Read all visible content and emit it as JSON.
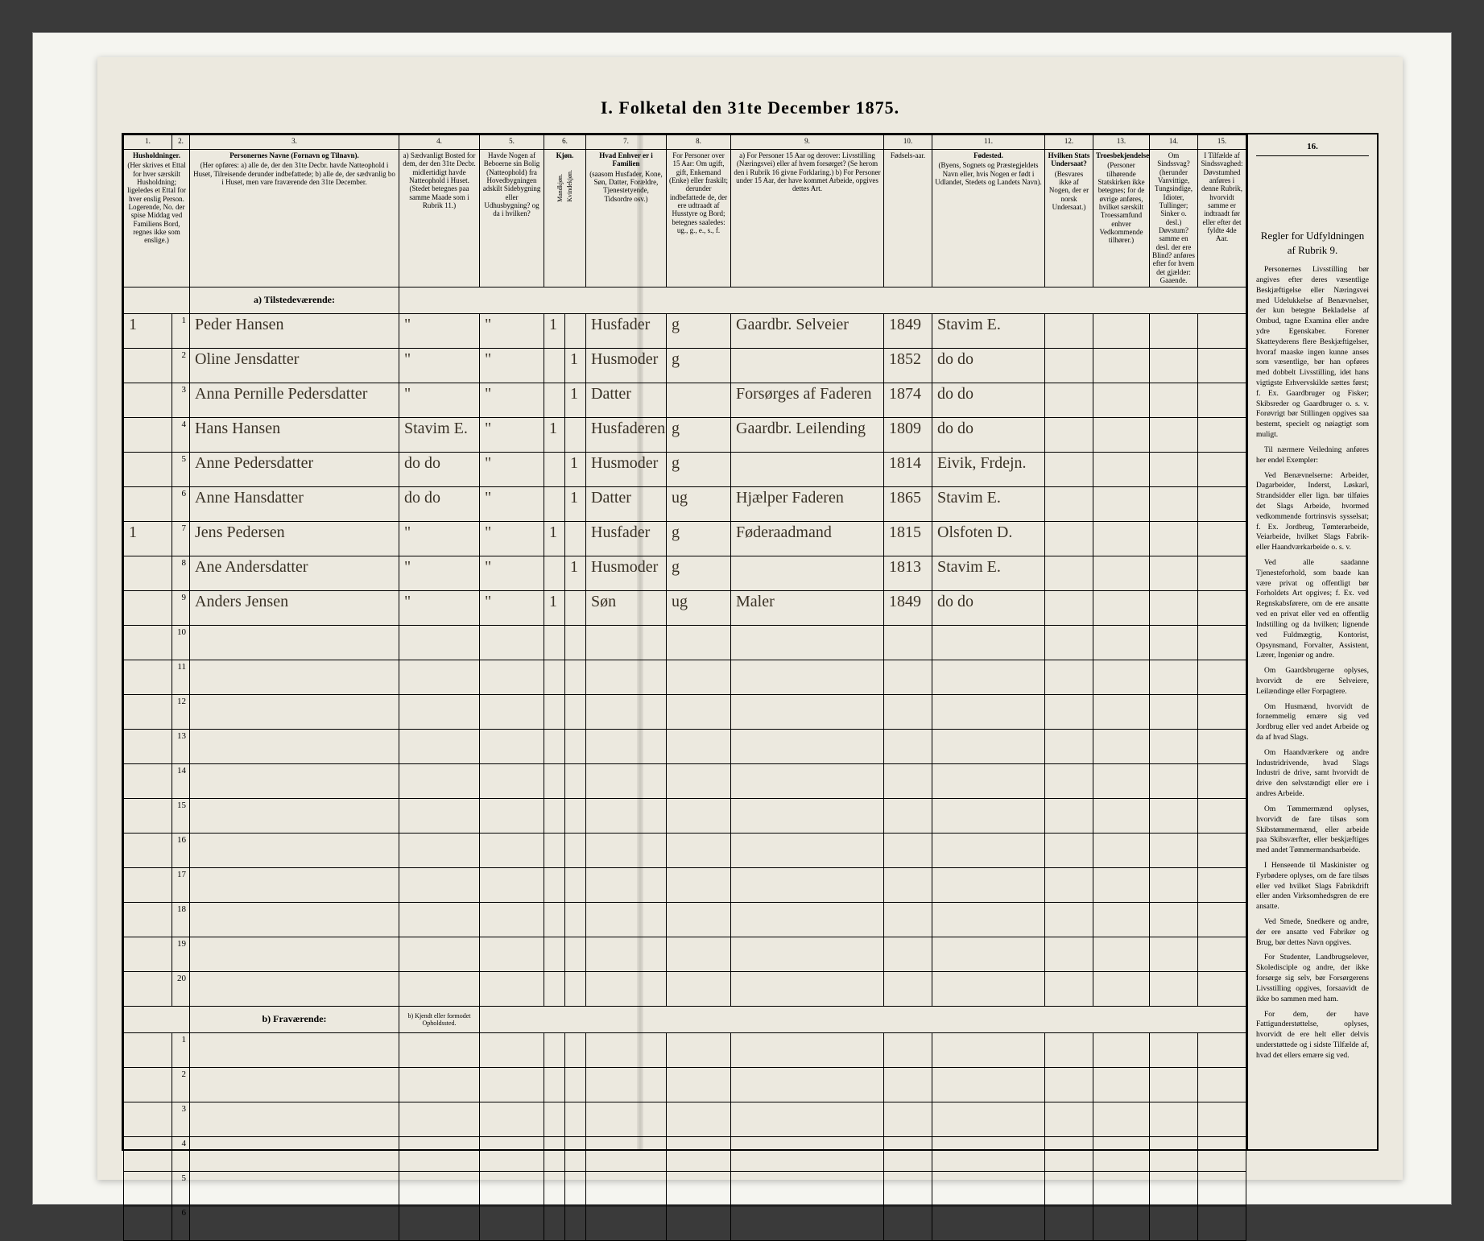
{
  "title": "I.  Folketal den 31te December 1875.",
  "columns": {
    "nums": [
      "1.",
      "2.",
      "3.",
      "4.",
      "5.",
      "6.",
      "7.",
      "8.",
      "9.",
      "10.",
      "11.",
      "12.",
      "13.",
      "14.",
      "15."
    ],
    "h1": "Husholdninger.",
    "h1b": "(Her skrives et Ettal for hver særskilt Husholdning; ligeledes et Ettal for hver enslig Person. Logerende, No. der spise Middag ved Familiens Bord, regnes ikke som enslige.)",
    "h3": "Personernes Navne (Fornavn og Tilnavn).",
    "h3b": "(Her opføres: a) alle de, der den 31te Decbr. havde Natteophold i Huset, Tilreisende derunder indbefattede; b) alle de, der sædvanlig bo i Huset, men vare fraværende den 31te December.",
    "h4": "a) Sædvanligt Bosted for dem, der den 31te Decbr. midlertidigt havde Natteophold i Huset. (Stedet betegnes paa samme Maade som i Rubrik 11.)",
    "h5": "Havde Nogen af Beboerne sin Bolig (Natteophold) fra Hovedbygningen adskilt Sidebygning eller Udhusbygning? og da i hvilken?",
    "h6": "Kjøn.",
    "h6a": "Mandkjøn.",
    "h6b": "Kvindekjøn.",
    "h7": "Hvad Enhver er i Familien",
    "h7b": "(saasom Husfader, Kone, Søn, Datter, Forældre, Tjenestetyende, Tidsordre osv.)",
    "h8": "For Personer over 15 Aar: Om ugift, gift, Enkemand (Enke) eller fraskilt; derunder indbefattede de, der ere udtraadt af Husstyre og Bord; betegnes saaledes: ug., g., e., s., f.",
    "h9": "a) For Personer 15 Aar og derover: Livsstilling (Næringsvei) eller af hvem forsørget? (Se herom den i Rubrik 16 givne Forklaring.) b) For Personer under 15 Aar, der have kommet Arbeide, opgives dettes Art.",
    "h10": "Fødsels-aar.",
    "h11": "Fødested.",
    "h11b": "(Byens, Sognets og Præstegjeldets Navn eller, hvis Nogen er født i Udlandet, Stedets og Landets Navn).",
    "h12": "Hvilken Stats Undersaat?",
    "h12b": "(Besvares ikke af Nogen, der er norsk Undersaat.)",
    "h13": "Troesbekjendelse.",
    "h13b": "(Personer tilhørende Statskirken ikke betegnes; for de øvrige anføres, hvilket særskilt Troessamfund enhver Vedkommende tilhører.)",
    "h14": "Om Sindssvag? (herunder Vanvittige, Tungsindige, Idioter, Tullinger; Sinker o. desl.) Døvstum? samme en desl. der ere Blind? anføres efter for hvem det gjælder: Gaaende.",
    "h15": "I Tilfælde af Sindssvaghed: Døvstumhed anføres i denne Rubrik, hvorvidt samme er indtraadt før eller efter det fyldte 4de Aar.",
    "section_a": "a) Tilstedeværende:",
    "section_b": "b) Fraværende:",
    "h4_b": "b) Kjendt eller formodet Opholdssted."
  },
  "rows": [
    {
      "hh": "1",
      "n": "1",
      "name": "Peder Hansen",
      "c4": "\"",
      "c5": "\"",
      "m": "1",
      "k": "",
      "fam": "Husfader",
      "civ": "g",
      "occ": "Gaardbr. Selveier",
      "yr": "1849",
      "place": "Stavim E."
    },
    {
      "hh": "",
      "n": "2",
      "name": "Oline Jensdatter",
      "c4": "\"",
      "c5": "\"",
      "m": "",
      "k": "1",
      "fam": "Husmoder",
      "civ": "g",
      "occ": "",
      "yr": "1852",
      "place": "do   do"
    },
    {
      "hh": "",
      "n": "3",
      "name": "Anna Pernille Pedersdatter",
      "c4": "\"",
      "c5": "\"",
      "m": "",
      "k": "1",
      "fam": "Datter",
      "civ": "",
      "occ": "Forsørges af Faderen",
      "yr": "1874",
      "place": "do   do"
    },
    {
      "hh": "",
      "n": "4",
      "name": "Hans Hansen",
      "c4": "Stavim E.",
      "c5": "\"",
      "m": "1",
      "k": "",
      "fam": "Husfaderens Fader",
      "civ": "g",
      "occ": "Gaardbr. Leilending",
      "yr": "1809",
      "place": "do   do"
    },
    {
      "hh": "",
      "n": "5",
      "name": "Anne Pedersdatter",
      "c4": "do  do",
      "c5": "\"",
      "m": "",
      "k": "1",
      "fam": "Husmoder",
      "civ": "g",
      "occ": "",
      "yr": "1814",
      "place": "Eivik, Frdejn."
    },
    {
      "hh": "",
      "n": "6",
      "name": "Anne Hansdatter",
      "c4": "do  do",
      "c5": "\"",
      "m": "",
      "k": "1",
      "fam": "Datter",
      "civ": "ug",
      "occ": "Hjælper Faderen",
      "yr": "1865",
      "place": "Stavim E."
    },
    {
      "hh": "1",
      "n": "7",
      "name": "Jens Pedersen",
      "c4": "\"",
      "c5": "\"",
      "m": "1",
      "k": "",
      "fam": "Husfader",
      "civ": "g",
      "occ": "Føderaadmand",
      "yr": "1815",
      "place": "Olsfoten D."
    },
    {
      "hh": "",
      "n": "8",
      "name": "Ane Andersdatter",
      "c4": "\"",
      "c5": "\"",
      "m": "",
      "k": "1",
      "fam": "Husmoder",
      "civ": "g",
      "occ": "",
      "yr": "1813",
      "place": "Stavim E."
    },
    {
      "hh": "",
      "n": "9",
      "name": "Anders Jensen",
      "c4": "\"",
      "c5": "\"",
      "m": "1",
      "k": "",
      "fam": "Søn",
      "civ": "ug",
      "occ": "Maler",
      "yr": "1849",
      "place": "do   do"
    }
  ],
  "blank_rows_a": [
    "10",
    "11",
    "12",
    "13",
    "14",
    "15",
    "16",
    "17",
    "18",
    "19",
    "20"
  ],
  "blank_rows_b": [
    "1",
    "2",
    "3",
    "4",
    "5",
    "6"
  ],
  "rules": {
    "title": "Regler for Udfyldningen af Rubrik 9.",
    "paras": [
      "Personernes Livsstilling bør angives efter deres væsentlige Beskjæftigelse eller Næringsvei med Udelukkelse af Benævnelser, der kun betegne Bekladelse af Ombud, tagne Examina eller andre ydre Egenskaber. Forener Skatteyderens flere Beskjæftigelser, hvoraf maaske ingen kunne anses som væsentlige, bør han opføres med dobbelt Livsstilling, idet hans vigtigste Erhvervskilde sættes først; f. Ex. Gaardbruger og Fisker; Skibsreder og Gaardbruger o. s. v. Forøvrigt bør Stillingen opgives saa bestemt, specielt og nøiagtigt som muligt.",
      "Til nærmere Veiledning anføres her endel Exempler:",
      "Ved Benævnelserne: Arbeider, Dagarbeider, Inderst, Løskarl, Strandsidder eller lign. bør tilføies det Slags Arbeide, hvormed vedkommende fortrinsvis sysselsat; f. Ex. Jordbrug, Tømterarbeide, Veiarbeide, hvilket Slags Fabrik- eller Haandværkarbeide o. s. v.",
      "Ved alle saadanne Tjenesteforhold, som baade kan være privat og offentligt bør Forholdets Art opgives; f. Ex. ved Regnskabsførere, om de ere ansatte ved en privat eller ved en offentlig Indstilling og da hvilken; lignende ved Fuldmægtig, Kontorist, Opsynsmand, Forvalter, Assistent, Lærer, Ingeniør og andre.",
      "Om Gaardsbrugerne oplyses, hvorvidt de ere Selveiere, Leilændinge eller Forpagtere.",
      "Om Husmænd, hvorvidt de fornemmelig ernære sig ved Jordbrug eller ved andet Arbeide og da af hvad Slags.",
      "Om Haandværkere og andre Industridrivende, hvad Slags Industri de drive, samt hvorvidt de drive den selvstændigt eller ere i andres Arbeide.",
      "Om Tømmermænd oplyses, hvorvidt de fare tilsøs som Skibstømmermænd, eller arbeide paa Skibsværfter, eller beskjæftiges med andet Tømmermandsarbeide.",
      "I Henseende til Maskinister og Fyrbødere oplyses, om de fare tilsøs eller ved hvilket Slags Fabrikdrift eller anden Virksomhedsgren de ere ansatte.",
      "Ved Smede, Snedkere og andre, der ere ansatte ved Fabriker og Brug, bør dettes Navn opgives.",
      "For Studenter, Landbrugselever, Skoledisciple og andre, der ikke forsørge sig selv, bør Forsørgerens Livsstilling opgives, forsaavidt de ikke bo sammen med ham.",
      "For dem, der have Fattigunderstøttelse, oplyses, hvorvidt de ere helt eller delvis understøttede og i sidste Tilfælde af, hvad det ellers ernære sig ved."
    ]
  },
  "colwidths": {
    "c1": 60,
    "c2": 22,
    "c3": 260,
    "c4": 100,
    "c5": 80,
    "c6a": 26,
    "c6b": 26,
    "c7": 100,
    "c8": 80,
    "c9": 190,
    "c10": 60,
    "c11": 140,
    "c12": 60,
    "c13": 70,
    "c14": 60,
    "c15": 60
  }
}
